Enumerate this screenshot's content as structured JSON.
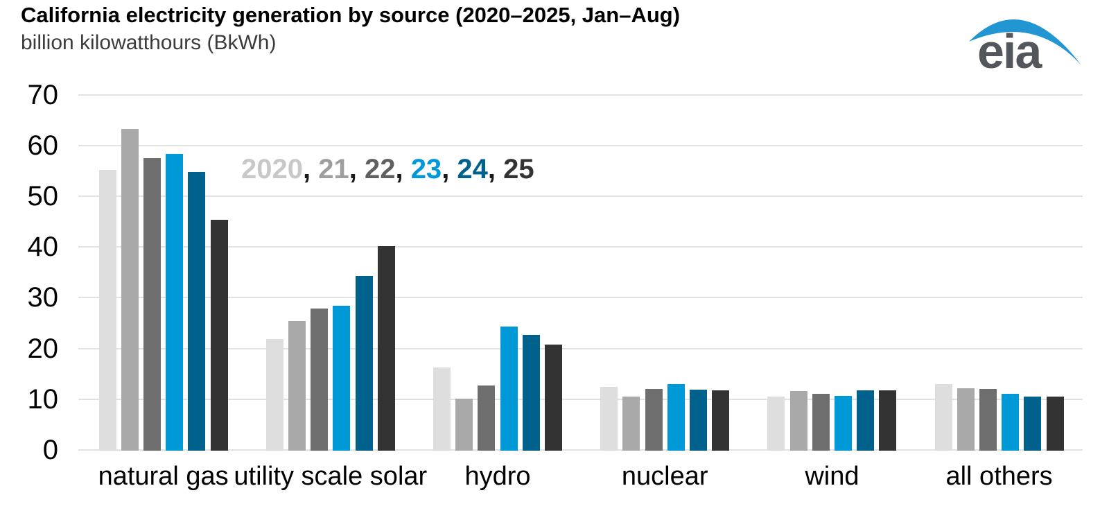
{
  "header": {
    "title": "California electricity generation by source (2020–2025, Jan–Aug)",
    "subtitle": "billion kilowatthours (BkWh)"
  },
  "logo": {
    "text": "eia",
    "text_color": "#53565a",
    "swoosh_color": "#2196d3"
  },
  "legend": {
    "separator": ", ",
    "separator_color": "#1a1a1a",
    "items": [
      {
        "label": "2020",
        "color": "#c8c8c8"
      },
      {
        "label": "21",
        "color": "#9e9e9e"
      },
      {
        "label": "22",
        "color": "#5f5f5f"
      },
      {
        "label": "23",
        "color": "#0099d8"
      },
      {
        "label": "24",
        "color": "#00618c"
      },
      {
        "label": "25",
        "color": "#333333"
      }
    ]
  },
  "chart_data": {
    "type": "bar",
    "title": "California electricity generation by source (2020–2025, Jan–Aug)",
    "ylabel": "billion kilowatthours (BkWh)",
    "xlabel": "",
    "ylim": [
      0,
      70
    ],
    "yticks": [
      0,
      10,
      20,
      30,
      40,
      50,
      60,
      70
    ],
    "grid": "horizontal",
    "gridline_color": "#e2e2e2",
    "legend_position": "inside-top-left",
    "categories": [
      "natural gas",
      "utility scale solar",
      "hydro",
      "nuclear",
      "wind",
      "all others"
    ],
    "series": [
      {
        "name": "2020",
        "color": "#dedede",
        "values": [
          55.4,
          22.0,
          16.4,
          12.6,
          10.6,
          13.1
        ]
      },
      {
        "name": "21",
        "color": "#a9a9a9",
        "values": [
          63.4,
          25.5,
          10.3,
          10.6,
          11.7,
          12.3
        ]
      },
      {
        "name": "22",
        "color": "#6e6e6e",
        "values": [
          57.7,
          28.0,
          12.8,
          12.2,
          11.2,
          12.2
        ]
      },
      {
        "name": "23",
        "color": "#0099d8",
        "values": [
          58.5,
          28.6,
          24.5,
          13.1,
          10.8,
          11.2
        ]
      },
      {
        "name": "24",
        "color": "#00618c",
        "values": [
          55.0,
          34.4,
          22.8,
          12.0,
          11.9,
          10.7
        ]
      },
      {
        "name": "25",
        "color": "#333333",
        "values": [
          45.5,
          40.3,
          20.9,
          11.9,
          11.9,
          10.6
        ]
      }
    ]
  }
}
